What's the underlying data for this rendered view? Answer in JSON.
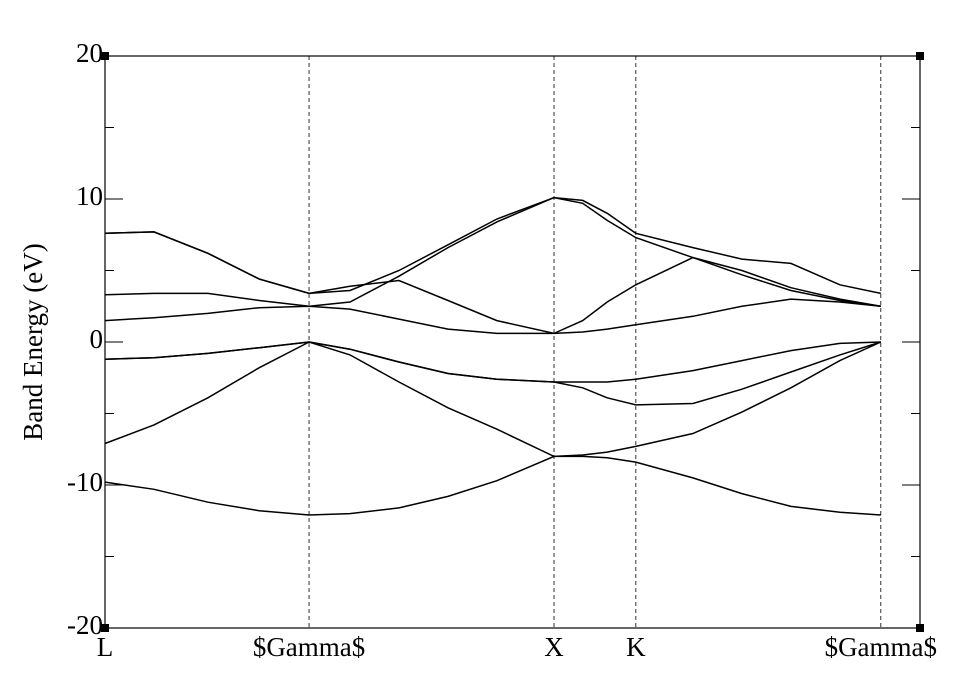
{
  "chart_data": {
    "type": "line",
    "ylabel": "Band Energy (eV)",
    "x": [
      0,
      0.2,
      0.42,
      0.63,
      0.833,
      1.0,
      1.2,
      1.4,
      1.6,
      1.833,
      1.95,
      2.05,
      2.167,
      2.4,
      2.6,
      2.8,
      3.0,
      3.167
    ],
    "xlim": [
      0,
      3.327
    ],
    "xticks": [
      {
        "value": 0,
        "label": "L"
      },
      {
        "value": 0.833,
        "label": "$Gamma$"
      },
      {
        "value": 1.833,
        "label": "X"
      },
      {
        "value": 2.167,
        "label": "K"
      },
      {
        "value": 3.167,
        "label": "$Gamma$"
      }
    ],
    "ylim": [
      -20,
      20
    ],
    "yticks": [
      -20,
      -10,
      0,
      10,
      20
    ],
    "yminorticks": [
      -15,
      -5,
      5,
      15
    ],
    "series": [
      {
        "color": "#000000",
        "values": [
          -9.8,
          -10.3,
          -11.2,
          -11.8,
          -12.1,
          -12.0,
          -11.6,
          -10.8,
          -9.7,
          -8.0,
          -8.0,
          -8.1,
          -8.4,
          -9.5,
          -10.6,
          -11.5,
          -11.9,
          -12.1
        ]
      },
      {
        "color": "#000000",
        "values": [
          -7.1,
          -5.8,
          -3.9,
          -1.8,
          0,
          -0.9,
          -2.8,
          -4.6,
          -6.1,
          -8.0,
          -7.9,
          -7.7,
          -7.3,
          -6.4,
          -4.9,
          -3.2,
          -1.3,
          0
        ]
      },
      {
        "color": "#000000",
        "values": [
          -1.2,
          -1.1,
          -0.8,
          -0.4,
          0,
          -0.5,
          -1.4,
          -2.2,
          -2.6,
          -2.8,
          -2.8,
          -2.8,
          -2.6,
          -2.0,
          -1.3,
          -0.6,
          -0.1,
          0
        ]
      },
      {
        "color": "#000000",
        "values": [
          -1.2,
          -1.1,
          -0.8,
          -0.4,
          0,
          -0.5,
          -1.4,
          -2.2,
          -2.6,
          -2.8,
          -3.2,
          -3.9,
          -4.4,
          -4.3,
          -3.3,
          -2.1,
          -0.9,
          0
        ]
      },
      {
        "color": "#000000",
        "values": [
          1.5,
          1.7,
          2.0,
          2.4,
          2.5,
          2.3,
          1.6,
          0.9,
          0.6,
          0.6,
          0.7,
          0.9,
          1.2,
          1.8,
          2.5,
          3.0,
          2.8,
          2.5
        ]
      },
      {
        "color": "#000000",
        "values": [
          3.3,
          3.4,
          3.4,
          2.9,
          2.5,
          2.8,
          4.6,
          6.6,
          8.4,
          10.1,
          9.7,
          8.5,
          7.3,
          5.9,
          4.7,
          3.6,
          2.9,
          2.5
        ]
      },
      {
        "color": "#000000",
        "values": [
          7.6,
          7.7,
          6.2,
          4.4,
          3.4,
          3.9,
          4.3,
          2.9,
          1.5,
          0.6,
          1.5,
          2.8,
          4.0,
          5.9,
          5.0,
          3.8,
          3.0,
          2.5
        ]
      },
      {
        "color": "#000000",
        "values": [
          7.6,
          7.7,
          6.2,
          4.4,
          3.4,
          3.6,
          5.0,
          6.8,
          8.6,
          10.1,
          9.9,
          9.0,
          7.6,
          6.6,
          5.8,
          5.5,
          4.0,
          3.4
        ]
      }
    ]
  }
}
